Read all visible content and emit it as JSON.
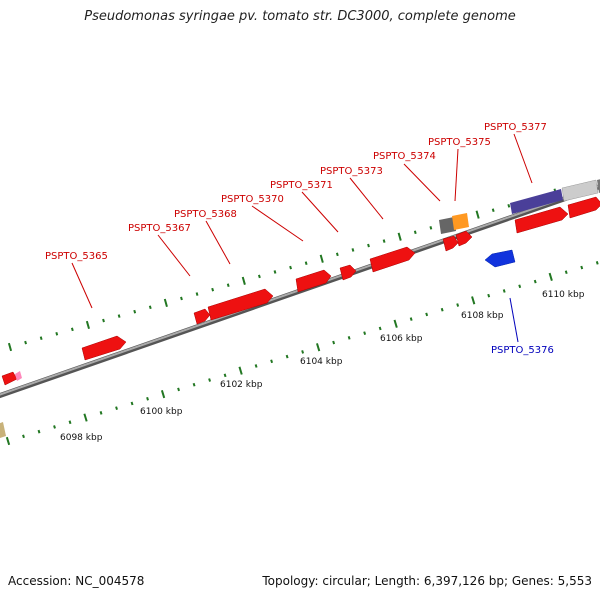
{
  "title": "Pseudomonas syringae pv. tomato str. DC3000, complete genome",
  "accession": "Accession: NC_004578",
  "summary": "Topology: circular; Length: 6,397,126 bp; Genes: 5,553",
  "colors": {
    "forward_gene": "#ee1111",
    "reverse_gene": "#1133dd",
    "forward_label": "#cc0000",
    "reverse_label": "#0000bb",
    "backbone": "#888888",
    "tick": "#227722"
  },
  "kbp_labels": [
    "6098 kbp",
    "6100 kbp",
    "6102 kbp",
    "6104 kbp",
    "6106 kbp",
    "6108 kbp",
    "6110 kbp"
  ],
  "gene_labels": [
    {
      "text": "PSPTO_5365",
      "strand": "forward"
    },
    {
      "text": "PSPTO_5367",
      "strand": "forward"
    },
    {
      "text": "PSPTO_5368",
      "strand": "forward"
    },
    {
      "text": "PSPTO_5370",
      "strand": "forward"
    },
    {
      "text": "PSPTO_5371",
      "strand": "forward"
    },
    {
      "text": "PSPTO_5373",
      "strand": "forward"
    },
    {
      "text": "PSPTO_5374",
      "strand": "forward"
    },
    {
      "text": "PSPTO_5375",
      "strand": "forward"
    },
    {
      "text": "PSPTO_5377",
      "strand": "forward"
    },
    {
      "text": "PSPTO_5376",
      "strand": "reverse"
    }
  ]
}
